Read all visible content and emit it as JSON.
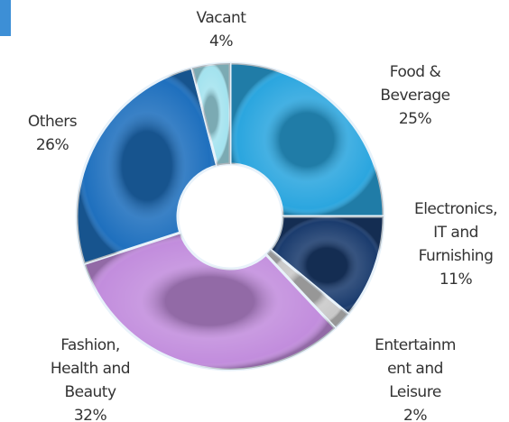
{
  "chart_data": {
    "type": "donut",
    "categories": [
      [
        "Food &",
        "Beverage"
      ],
      [
        "Electronics,",
        "IT and",
        "Furnishing"
      ],
      [
        "Entertainm",
        "ent and",
        "Leisure"
      ],
      [
        "Fashion,",
        "Health and",
        "Beauty"
      ],
      [
        "Others"
      ],
      [
        "Vacant"
      ]
    ],
    "values": [
      25,
      11,
      2,
      32,
      26,
      4
    ],
    "value_labels": [
      "25%",
      "11%",
      "2%",
      "32%",
      "26%",
      "4%"
    ],
    "colors": [
      "#2ba6df",
      "#1b3c6e",
      "#c9c9c9",
      "#c28ddd",
      "#1f70be",
      "#a4e3ef"
    ]
  }
}
